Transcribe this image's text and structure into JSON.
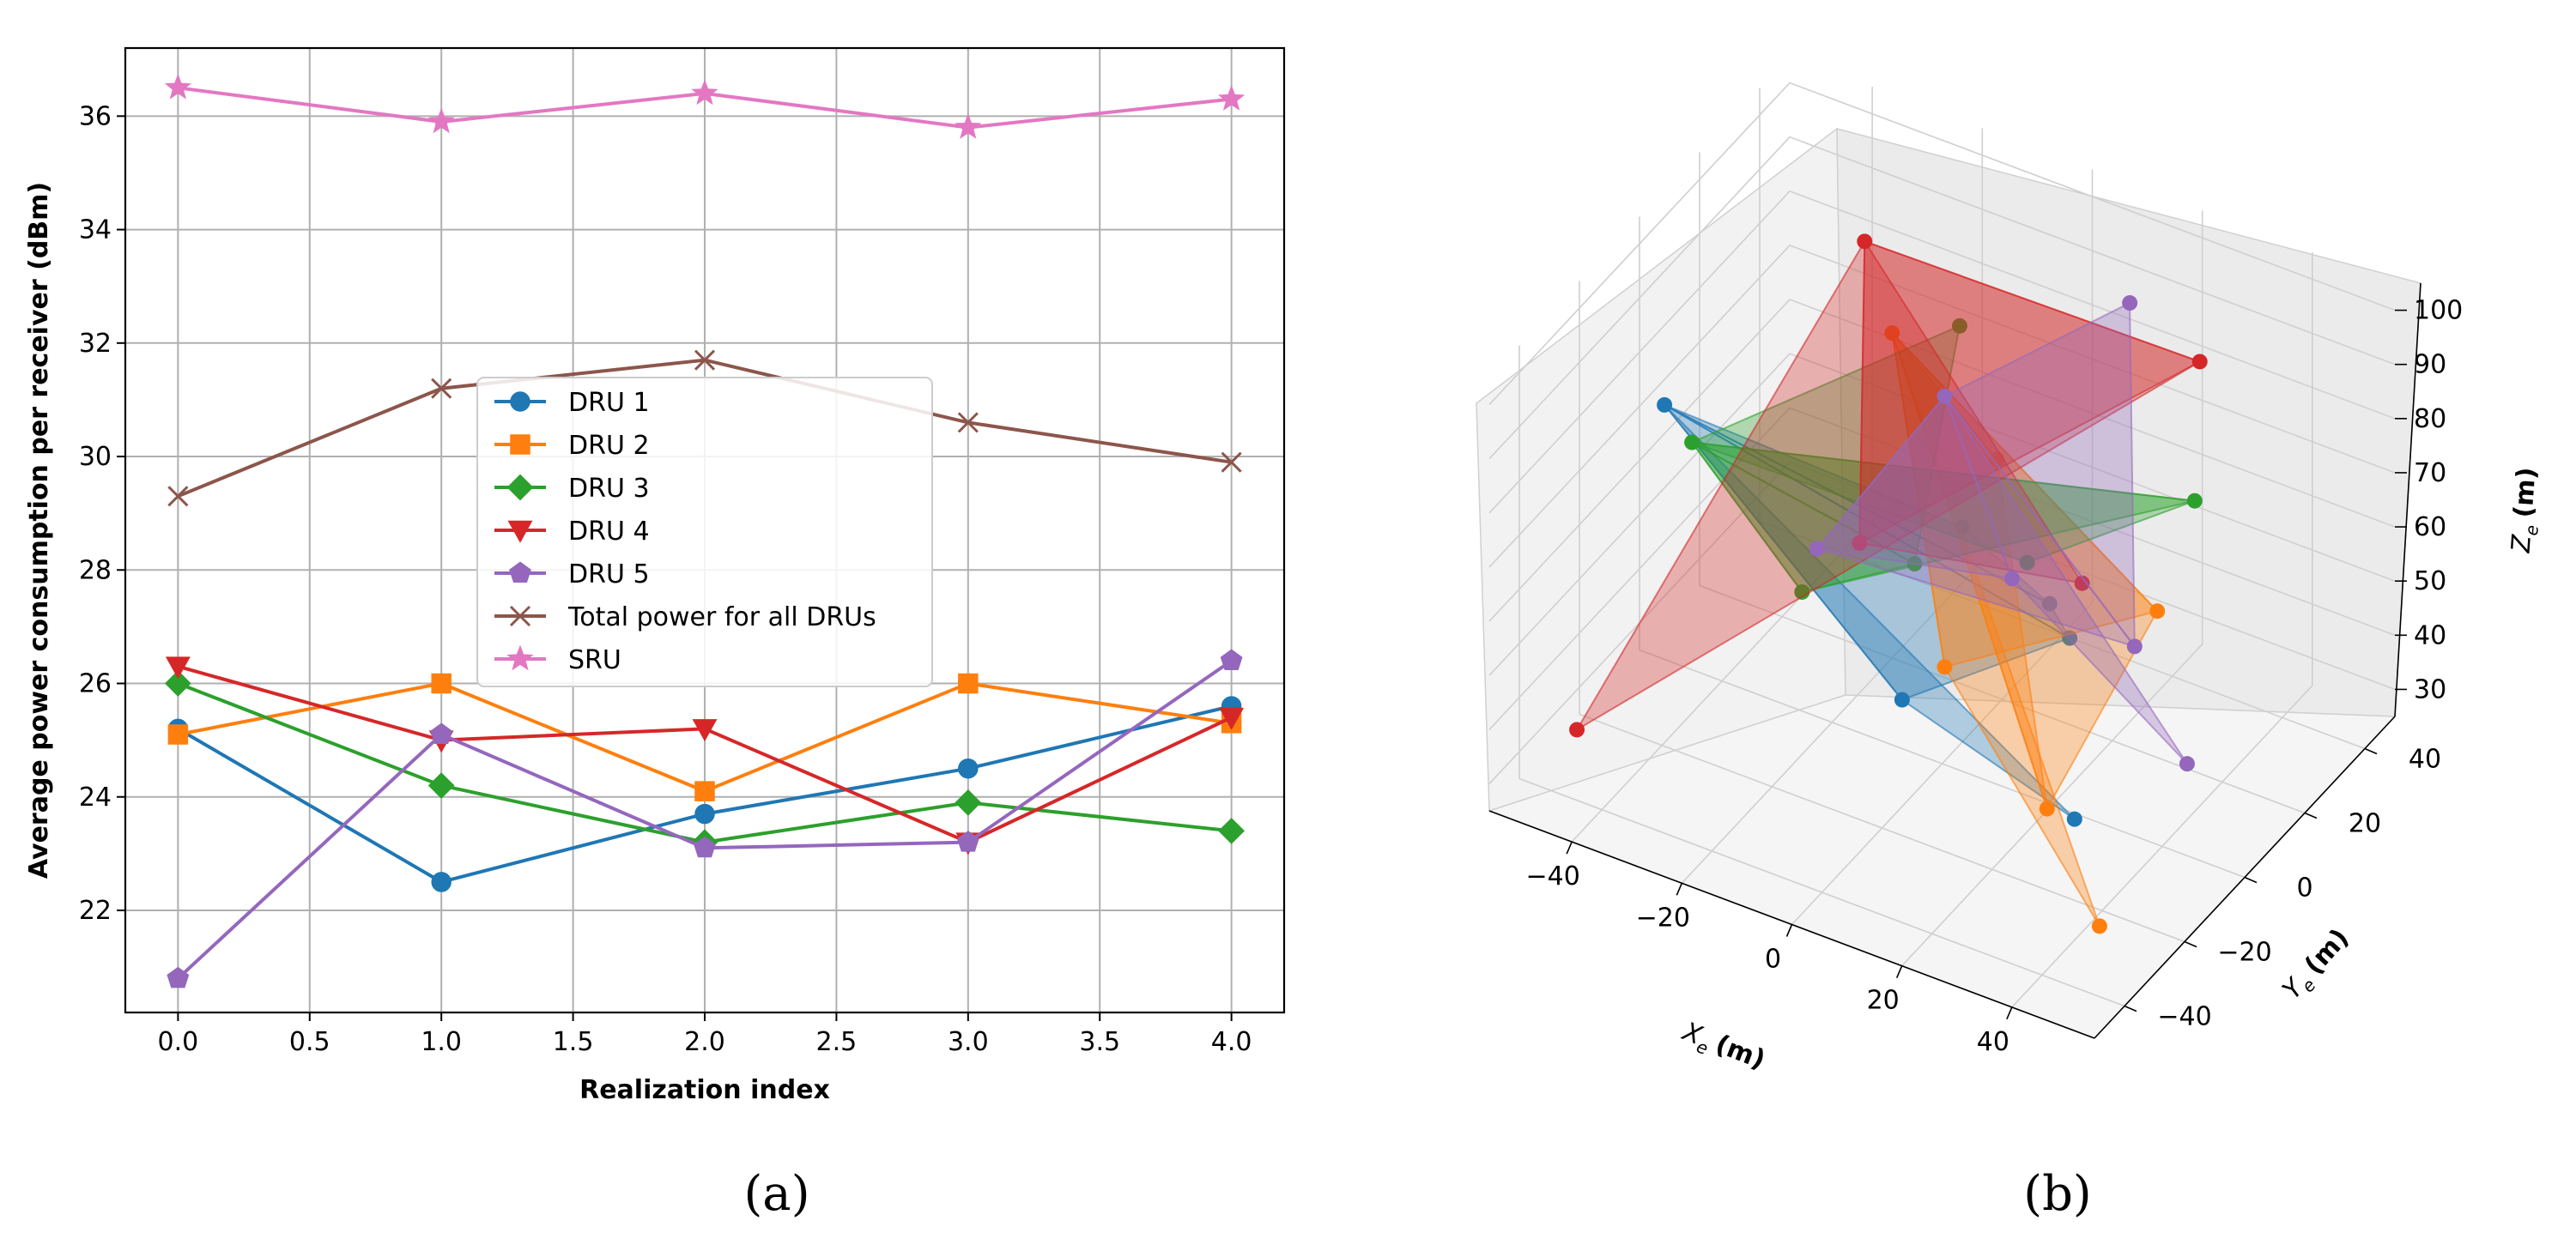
{
  "chart_data": [
    {
      "panel_label": "(a)",
      "type": "line",
      "xlabel": "Realization index",
      "ylabel": "Average power consumption per receiver (dBm)",
      "xlim": [
        -0.2,
        4.2
      ],
      "ylim": [
        20.2,
        37.2
      ],
      "xticks": [
        "0.0",
        "0.5",
        "1.0",
        "1.5",
        "2.0",
        "2.5",
        "3.0",
        "3.5",
        "4.0"
      ],
      "yticks": [
        "22",
        "24",
        "26",
        "28",
        "30",
        "32",
        "34",
        "36"
      ],
      "grid": true,
      "legend_position": "center",
      "x": [
        0,
        1,
        2,
        3,
        4
      ],
      "series": [
        {
          "name": "DRU 1",
          "color": "#1f77b4",
          "marker": "circle",
          "values": [
            25.2,
            22.5,
            23.7,
            24.5,
            25.6
          ]
        },
        {
          "name": "DRU 2",
          "color": "#ff7f0e",
          "marker": "square",
          "values": [
            25.1,
            26.0,
            24.1,
            26.0,
            25.3
          ]
        },
        {
          "name": "DRU 3",
          "color": "#2ca02c",
          "marker": "diamond",
          "values": [
            26.0,
            24.2,
            23.2,
            23.9,
            23.4
          ]
        },
        {
          "name": "DRU 4",
          "color": "#d62728",
          "marker": "triangle-down",
          "values": [
            26.3,
            25.0,
            25.2,
            23.2,
            25.4
          ]
        },
        {
          "name": "DRU 5",
          "color": "#9467bd",
          "marker": "pentagon",
          "values": [
            20.8,
            25.1,
            23.1,
            23.2,
            26.4
          ]
        },
        {
          "name": "Total power for all DRUs",
          "color": "#8c564b",
          "marker": "x",
          "values": [
            29.3,
            31.2,
            31.7,
            30.6,
            29.9
          ]
        },
        {
          "name": "SRU",
          "color": "#e377c2",
          "marker": "star",
          "values": [
            36.5,
            35.9,
            36.4,
            35.8,
            36.3
          ]
        }
      ]
    },
    {
      "panel_label": "(b)",
      "type": "scatter3d",
      "xlabel": "X_e (m)",
      "ylabel": "Y_e (m)",
      "zlabel": "Z_e (m)",
      "xlim": [
        -55,
        55
      ],
      "ylim": [
        -50,
        50
      ],
      "zlim": [
        25,
        105
      ],
      "xticks": [
        "-40",
        "-20",
        "0",
        "20",
        "40"
      ],
      "yticks": [
        "-40",
        "-20",
        "0",
        "20",
        "40"
      ],
      "zticks": [
        "30",
        "40",
        "50",
        "60",
        "70",
        "80",
        "90",
        "100"
      ],
      "x_label_main": "X",
      "x_label_sub": "e",
      "x_label_unit": "(m)",
      "y_label_main": "Y",
      "y_label_sub": "e",
      "y_label_unit": "(m)",
      "z_label_main": "Z",
      "z_label_sub": "e",
      "z_label_unit": "(m)",
      "groups": [
        {
          "name": "DRU 1",
          "color": "#1f77b4",
          "points": [
            [
              -45,
              -10,
              80
            ],
            [
              -10,
              25,
              50
            ],
            [
              25,
              -10,
              70
            ],
            [
              15,
              15,
              45
            ],
            [
              -10,
              5,
              30
            ],
            [
              35,
              -20,
              40
            ]
          ]
        },
        {
          "name": "DRU 2",
          "color": "#ff7f0e",
          "points": [
            [
              -20,
              20,
              85
            ],
            [
              10,
              0,
              85
            ],
            [
              30,
              -20,
              40
            ],
            [
              20,
              35,
              40
            ],
            [
              -5,
              10,
              35
            ],
            [
              45,
              -30,
              30
            ]
          ]
        },
        {
          "name": "DRU 3",
          "color": "#2ca02c",
          "points": [
            [
              -40,
              -10,
              75
            ],
            [
              -5,
              15,
              95
            ],
            [
              -5,
              0,
              60
            ],
            [
              -20,
              -10,
              55
            ],
            [
              35,
              20,
              75
            ],
            [
              10,
              10,
              60
            ]
          ]
        },
        {
          "name": "DRU 4",
          "color": "#d62728",
          "points": [
            [
              -25,
              20,
              100
            ],
            [
              -50,
              -30,
              30
            ],
            [
              25,
              40,
              85
            ],
            [
              -15,
              0,
              60
            ],
            [
              20,
              10,
              60
            ]
          ]
        },
        {
          "name": "DRU 5",
          "color": "#9467bd",
          "points": [
            [
              -5,
              10,
              85
            ],
            [
              15,
              35,
              95
            ],
            [
              35,
              0,
              60
            ],
            [
              -20,
              -5,
              60
            ],
            [
              10,
              5,
              60
            ],
            [
              50,
              -10,
              50
            ]
          ]
        }
      ]
    }
  ]
}
